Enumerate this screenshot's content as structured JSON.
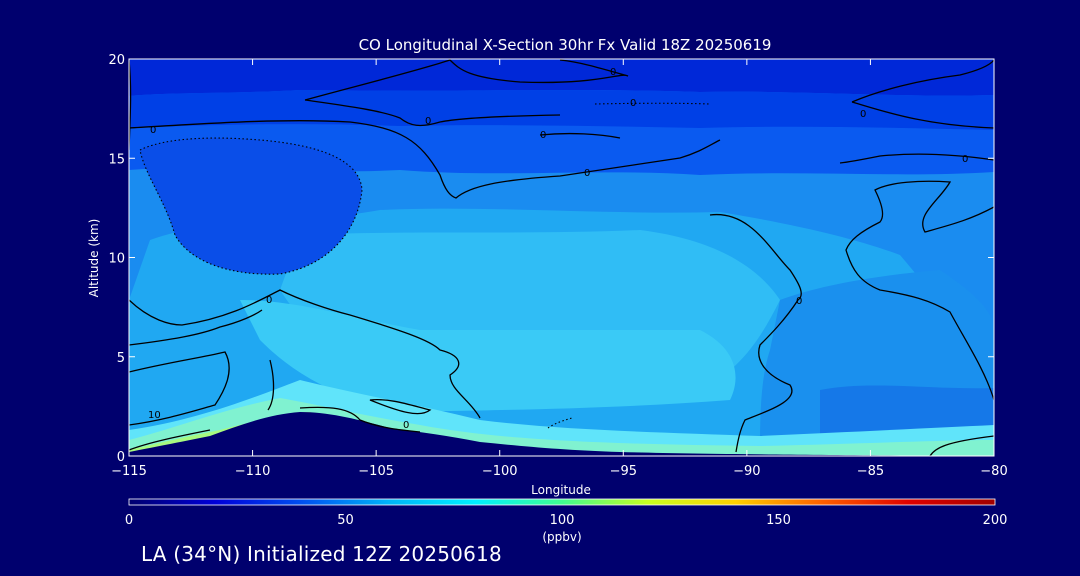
{
  "chart_data": {
    "type": "contour",
    "title": "CO Longitudinal X-Section 30hr  Fx Valid 18Z 20250619",
    "xlabel": "Longitude",
    "ylabel": "Altitude (km)",
    "xlim": [
      -115,
      -80
    ],
    "ylim": [
      0,
      20
    ],
    "x_ticks": [
      -115,
      -110,
      -105,
      -100,
      -95,
      -90,
      -85,
      -80
    ],
    "x_tick_labels": [
      "−115",
      "−110",
      "−105",
      "−100",
      "−95",
      "−90",
      "−85",
      "−80"
    ],
    "y_ticks": [
      0,
      5,
      10,
      15,
      20
    ],
    "y_tick_labels": [
      "0",
      "5",
      "10",
      "15",
      "20"
    ],
    "colorbar": {
      "min": 0,
      "max": 200,
      "ticks": [
        0,
        50,
        100,
        150,
        200
      ],
      "tick_labels": [
        "0",
        "50",
        "100",
        "150",
        "200"
      ],
      "units": "(ppbv)",
      "stops": [
        "#00006e",
        "#0000d8",
        "#0050f0",
        "#00b4f8",
        "#00f0ff",
        "#40ff90",
        "#c8ff20",
        "#ffd000",
        "#ff6000",
        "#e00000",
        "#a00000"
      ]
    },
    "contour_labels": [
      "0",
      "0",
      "0",
      "0",
      "0",
      "0",
      "0",
      "0",
      "0",
      "0",
      "0",
      "10"
    ],
    "terrain": [
      [
        -115,
        0.2
      ],
      [
        -113,
        0.4
      ],
      [
        -111,
        0.9
      ],
      [
        -108.5,
        2.1
      ],
      [
        -106,
        1.8
      ],
      [
        -104,
        1.3
      ],
      [
        -102,
        1.1
      ],
      [
        -100,
        0.8
      ],
      [
        -97,
        0.4
      ],
      [
        -94,
        0.2
      ],
      [
        -90,
        0.1
      ],
      [
        -80,
        0
      ]
    ]
  },
  "footer": "LA (34°N) Initialized 12Z 20250618"
}
